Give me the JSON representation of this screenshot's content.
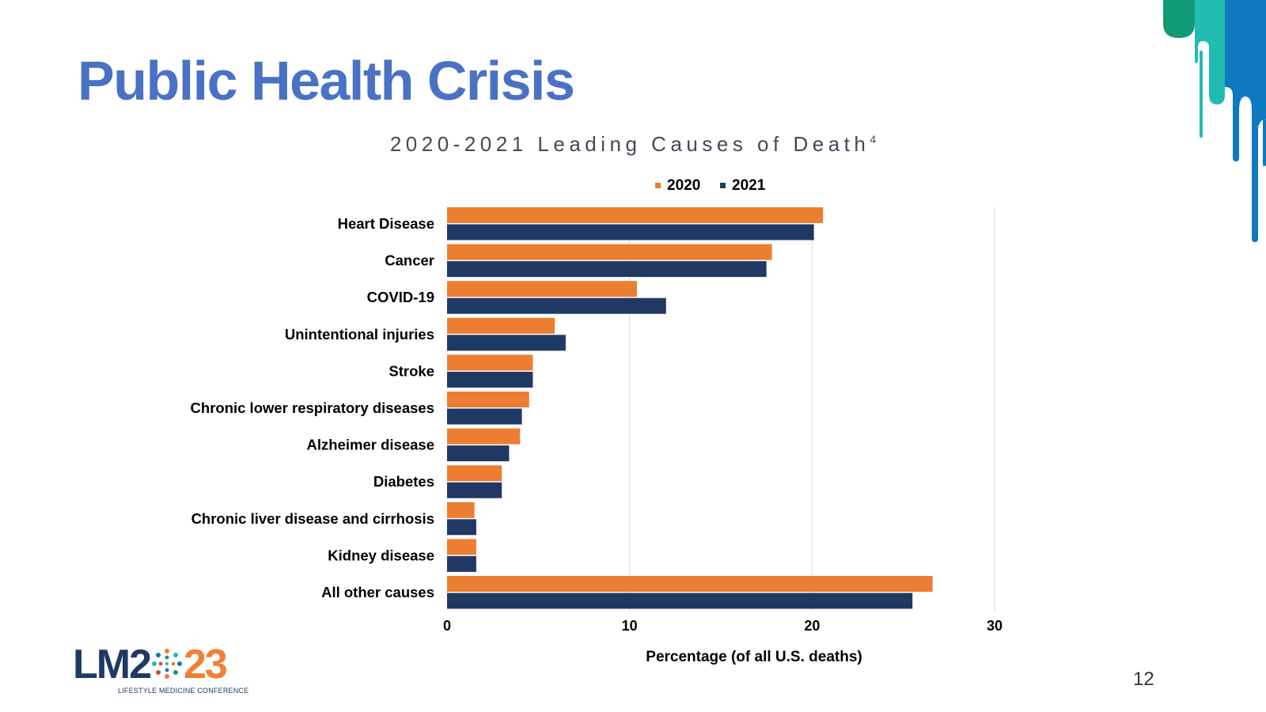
{
  "slide": {
    "title": "Public Health Crisis",
    "page_number": "12",
    "logo_text_left": "LM2",
    "logo_text_right": "23",
    "logo_subtitle": "LIFESTYLE MEDICINE CONFERENCE"
  },
  "colors": {
    "title": "#4a72c4",
    "series_2020": "#ed7d31",
    "series_2021": "#203864",
    "grid": "#d9d9d9",
    "deco_green": "#119a73",
    "deco_teal": "#21bcb1",
    "deco_blue": "#0f79bf"
  },
  "chart_data": {
    "type": "bar",
    "orientation": "horizontal",
    "title": "2020-2021 Leading Causes of Death",
    "title_superscript": "4",
    "xlabel": "Percentage (of all U.S. deaths)",
    "ylabel": "",
    "xlim": [
      0,
      30
    ],
    "xticks": [
      0,
      10,
      20,
      30
    ],
    "legend_position": "top",
    "grid": true,
    "categories": [
      "Heart Disease",
      "Cancer",
      "COVID-19",
      "Unintentional injuries",
      "Stroke",
      "Chronic lower respiratory diseases",
      "Alzheimer disease",
      "Diabetes",
      "Chronic liver disease and cirrhosis",
      "Kidney disease",
      "All other causes"
    ],
    "series": [
      {
        "name": "2020",
        "color": "#ed7d31",
        "values": [
          20.6,
          17.8,
          10.4,
          5.9,
          4.7,
          4.5,
          4.0,
          3.0,
          1.5,
          1.6,
          26.6
        ]
      },
      {
        "name": "2021",
        "color": "#203864",
        "values": [
          20.1,
          17.5,
          12.0,
          6.5,
          4.7,
          4.1,
          3.4,
          3.0,
          1.6,
          1.6,
          25.5
        ]
      }
    ]
  }
}
